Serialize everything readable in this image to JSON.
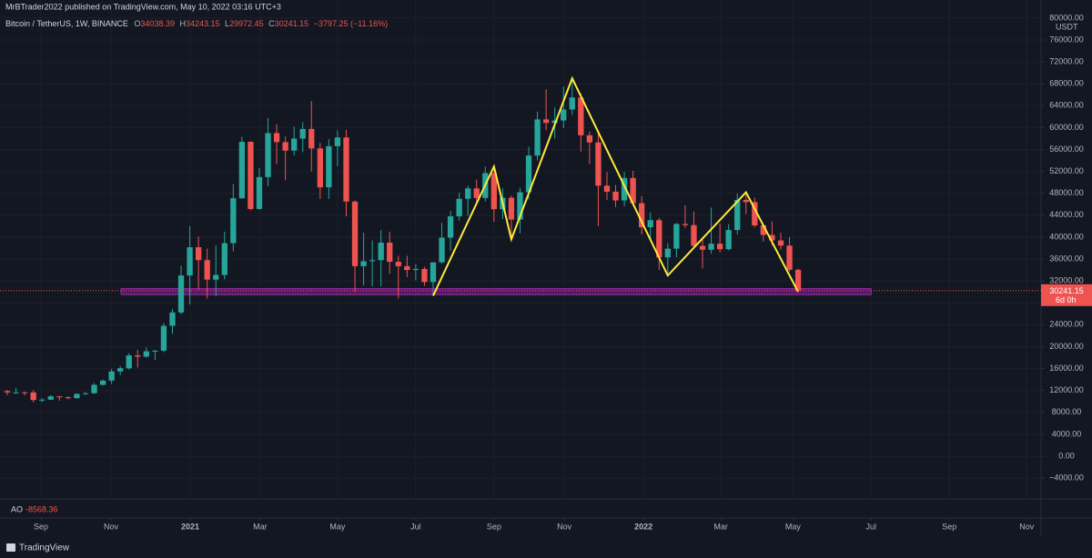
{
  "chart_data": {
    "type": "candlestick",
    "publisher": "MrBTrader2022 published on TradingView.com, May 10, 2022 03:16 UTC+3",
    "title": "Bitcoin / TetherUS, 1W, BINANCE",
    "ohlc_letters": [
      "O",
      "H",
      "L",
      "C"
    ],
    "change": "−3797.25 (−11.16%)",
    "currency": "USDT",
    "countdown": "6d 0h",
    "indicator": {
      "name": "AO",
      "value": -8568.36
    },
    "brand": "TradingView",
    "up_color": "#26a69a",
    "down_color": "#ef5350",
    "open": [
      11899,
      11648,
      11664,
      11650,
      10255,
      10320,
      10925,
      10775,
      10600,
      11370,
      11500,
      13030,
      13800,
      15480,
      16060,
      18410,
      18180,
      19150,
      19270,
      23800,
      26250,
      33000,
      38150,
      35800,
      32250,
      33100,
      38900,
      47100,
      57400,
      45140,
      50970,
      59000,
      57350,
      55800,
      58000,
      59750,
      56200,
      49100,
      56600,
      58200,
      46500,
      34700,
      35600,
      35800,
      39000,
      35500,
      34700,
      34000,
      34200,
      31800,
      35400,
      39900,
      43800,
      47000,
      48900,
      47150,
      51700,
      45100,
      47200,
      43200,
      48200,
      54900,
      61500,
      60850,
      61300,
      63300,
      65500,
      58600,
      57300,
      49400,
      48300,
      46700,
      50800,
      46200,
      41800,
      43100,
      36300,
      37900,
      42400,
      42200,
      38400,
      37700,
      38800,
      37800,
      41300,
      46800,
      46400,
      42150,
      40400,
      39400,
      38450,
      34038.39
    ],
    "high": [
      12086,
      12468,
      11800,
      12050,
      10600,
      11180,
      10990,
      10950,
      11500,
      11720,
      13350,
      14000,
      15960,
      16480,
      18800,
      19420,
      19900,
      19420,
      24300,
      26900,
      34800,
      42000,
      40100,
      37900,
      38500,
      41000,
      49700,
      58350,
      57500,
      52640,
      61780,
      60600,
      58400,
      60200,
      61000,
      64850,
      57200,
      57900,
      59500,
      59600,
      46700,
      40800,
      39400,
      41300,
      41000,
      36600,
      36600,
      35100,
      34600,
      35400,
      42600,
      44800,
      48150,
      49400,
      50500,
      52900,
      52900,
      48900,
      47600,
      49000,
      56500,
      62900,
      67000,
      63700,
      67500,
      69000,
      66300,
      59300,
      59200,
      51900,
      49500,
      51900,
      52100,
      47500,
      44500,
      43500,
      38900,
      42600,
      45800,
      44700,
      40000,
      45400,
      42500,
      42400,
      48000,
      48200,
      47200,
      42400,
      42900,
      40800,
      40000,
      34243.15
    ],
    "low": [
      11125,
      11400,
      11100,
      9825,
      9875,
      10250,
      10135,
      10370,
      10530,
      11200,
      11400,
      12900,
      13200,
      14800,
      15800,
      16200,
      18000,
      17600,
      19000,
      22350,
      25900,
      27700,
      30400,
      28800,
      29240,
      32300,
      37400,
      47000,
      44900,
      45000,
      49300,
      53300,
      50400,
      54900,
      55500,
      52000,
      47000,
      47000,
      53000,
      43800,
      30000,
      31200,
      31000,
      31000,
      33300,
      28800,
      32700,
      32100,
      31100,
      29300,
      35200,
      37500,
      43000,
      43900,
      46400,
      46500,
      42800,
      43300,
      39600,
      40700,
      46900,
      54000,
      59500,
      58000,
      59900,
      62300,
      55600,
      53300,
      42000,
      46800,
      45500,
      45600,
      45700,
      40500,
      39600,
      34000,
      32900,
      36300,
      41700,
      38000,
      34300,
      37000,
      37200,
      37600,
      40500,
      44200,
      41800,
      39200,
      38500,
      37700,
      33700,
      29972.45
    ],
    "close": [
      11648,
      11664,
      11650,
      10255,
      10320,
      10925,
      10775,
      10600,
      11370,
      11500,
      13030,
      13800,
      15480,
      16060,
      18410,
      18180,
      19150,
      19270,
      23800,
      26250,
      33000,
      38150,
      35800,
      32250,
      33100,
      38900,
      47100,
      57400,
      45140,
      50970,
      59000,
      57350,
      55800,
      58000,
      59750,
      56200,
      49100,
      56600,
      58200,
      46500,
      34700,
      35600,
      35800,
      39000,
      35500,
      34700,
      34000,
      34200,
      31800,
      35400,
      39900,
      43800,
      47000,
      48900,
      47150,
      51700,
      45100,
      47200,
      43200,
      48200,
      54900,
      61500,
      60850,
      61300,
      63300,
      65500,
      58600,
      57300,
      49400,
      48300,
      46700,
      50800,
      46200,
      41800,
      43100,
      36300,
      37900,
      42400,
      42200,
      38400,
      37700,
      38800,
      37800,
      41300,
      46800,
      46400,
      42150,
      40400,
      39400,
      38450,
      34038.39,
      30241.15
    ],
    "xlim": [
      -0.84,
      118.95
    ],
    "xticks": [
      {
        "value": 3.87,
        "label": "Sep"
      },
      {
        "value": 11.94,
        "label": "Nov"
      },
      {
        "value": 21.05,
        "label": "2021"
      },
      {
        "value": 29.1,
        "label": "Mar"
      },
      {
        "value": 38.0,
        "label": "May"
      },
      {
        "value": 47.0,
        "label": "Jul"
      },
      {
        "value": 56.0,
        "label": "Sep"
      },
      {
        "value": 64.1,
        "label": "Nov"
      },
      {
        "value": 73.2,
        "label": "2022"
      },
      {
        "value": 82.1,
        "label": "Mar"
      },
      {
        "value": 90.4,
        "label": "May"
      },
      {
        "value": 99.4,
        "label": "Jul"
      },
      {
        "value": 108.4,
        "label": "Sep"
      },
      {
        "value": 117.3,
        "label": "Nov"
      }
    ],
    "ylim": [
      -7800,
      83300
    ],
    "yticks": [
      {
        "value": -4000,
        "label": "−4000.00"
      },
      {
        "value": 0,
        "label": "0.00"
      },
      {
        "value": 4000,
        "label": "4000.00"
      },
      {
        "value": 8000,
        "label": "8000.00"
      },
      {
        "value": 12000,
        "label": "12000.00"
      },
      {
        "value": 16000,
        "label": "16000.00"
      },
      {
        "value": 20000,
        "label": "20000.00"
      },
      {
        "value": 24000,
        "label": "24000.00"
      },
      {
        "value": 28000,
        "label": "28000.00"
      },
      {
        "value": 32000,
        "label": "32000.00"
      },
      {
        "value": 36000,
        "label": "36000.00"
      },
      {
        "value": 40000,
        "label": "40000.00"
      },
      {
        "value": 44000,
        "label": "44000.00"
      },
      {
        "value": 48000,
        "label": "48000.00"
      },
      {
        "value": 52000,
        "label": "52000.00"
      },
      {
        "value": 56000,
        "label": "56000.00"
      },
      {
        "value": 60000,
        "label": "60000.00"
      },
      {
        "value": 64000,
        "label": "64000.00"
      },
      {
        "value": 68000,
        "label": "68000.00"
      },
      {
        "value": 72000,
        "label": "72000.00"
      },
      {
        "value": 76000,
        "label": "76000.00"
      },
      {
        "value": 80000,
        "label": "80000.00"
      }
    ],
    "grid": true,
    "zone": {
      "x": [
        13.1,
        99.4
      ],
      "y": [
        29500,
        30600
      ],
      "color": "#9c27b0"
    },
    "zigzag": {
      "x": [
        49,
        56,
        58,
        65,
        76,
        85,
        91
      ],
      "y": [
        29300,
        52900,
        39600,
        69000,
        33000,
        48200,
        30000
      ],
      "color": "#ffeb3b"
    }
  }
}
